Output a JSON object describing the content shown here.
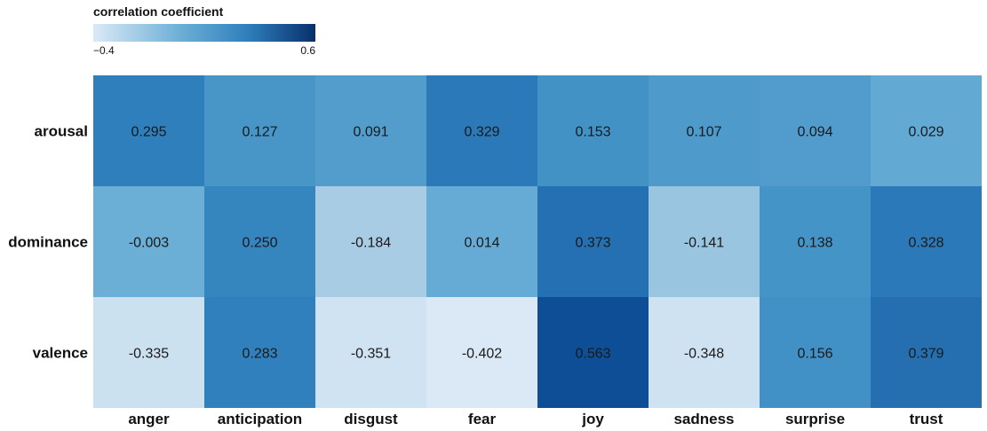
{
  "chart_data": {
    "type": "heatmap",
    "legend_title": "correlation coefficient",
    "color_range": [
      -0.4,
      0.6
    ],
    "color_range_labels": [
      "−0.4",
      "0.6"
    ],
    "colors": {
      "low": "#dbe9f6",
      "mid": "#6aaed6",
      "high": "#08306b"
    },
    "columns": [
      "anger",
      "anticipation",
      "disgust",
      "fear",
      "joy",
      "sadness",
      "surprise",
      "trust"
    ],
    "rows": [
      "arousal",
      "dominance",
      "valence"
    ],
    "values": [
      [
        0.295,
        0.127,
        0.091,
        0.329,
        0.153,
        0.107,
        0.094,
        0.029
      ],
      [
        -0.003,
        0.25,
        -0.184,
        0.014,
        0.373,
        -0.141,
        0.138,
        0.328
      ],
      [
        -0.335,
        0.283,
        -0.351,
        -0.402,
        0.563,
        -0.348,
        0.156,
        0.379
      ]
    ],
    "labels": [
      [
        "0.295",
        "0.127",
        "0.091",
        "0.329",
        "0.153",
        "0.107",
        "0.094",
        "0.029"
      ],
      [
        "-0.003",
        "0.250",
        "-0.184",
        "0.014",
        "0.373",
        "-0.141",
        "0.138",
        "0.328"
      ],
      [
        "-0.335",
        "0.283",
        "-0.351",
        "-0.402",
        "0.563",
        "-0.348",
        "0.156",
        "0.379"
      ]
    ]
  }
}
